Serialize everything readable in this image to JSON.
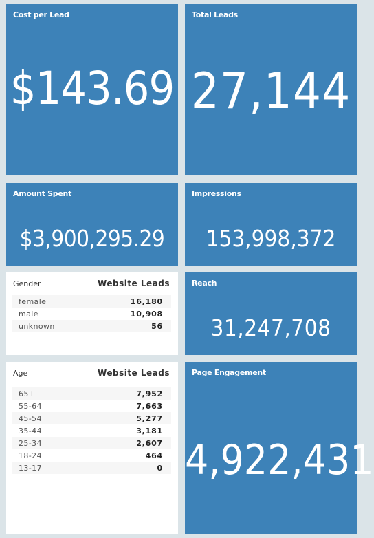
{
  "tiles": {
    "cost_per_lead": {
      "label": "Cost per Lead",
      "value": "$143.69"
    },
    "total_leads": {
      "label": "Total Leads",
      "value": "27,144"
    },
    "amount_spent": {
      "label": "Amount Spent",
      "value": "$3,900,295.29"
    },
    "impressions": {
      "label": "Impressions",
      "value": "153,998,372"
    },
    "reach": {
      "label": "Reach",
      "value": "31,247,708"
    },
    "page_engagement": {
      "label": "Page Engagement",
      "value": "4,922,431"
    }
  },
  "gender_table": {
    "header_left": "Gender",
    "header_right": "Website Leads",
    "rows": [
      {
        "label": "female",
        "value": "16,180"
      },
      {
        "label": "male",
        "value": "10,908"
      },
      {
        "label": "unknown",
        "value": "56"
      }
    ]
  },
  "age_table": {
    "header_left": "Age",
    "header_right": "Website Leads",
    "rows": [
      {
        "label": "65+",
        "value": "7,952"
      },
      {
        "label": "55-64",
        "value": "7,663"
      },
      {
        "label": "45-54",
        "value": "5,277"
      },
      {
        "label": "35-44",
        "value": "3,181"
      },
      {
        "label": "25-34",
        "value": "2,607"
      },
      {
        "label": "18-24",
        "value": "464"
      },
      {
        "label": "13-17",
        "value": "0"
      }
    ]
  },
  "colors": {
    "tile": "#3d82b8",
    "background": "#dbe4e8",
    "panel": "#ffffff"
  }
}
